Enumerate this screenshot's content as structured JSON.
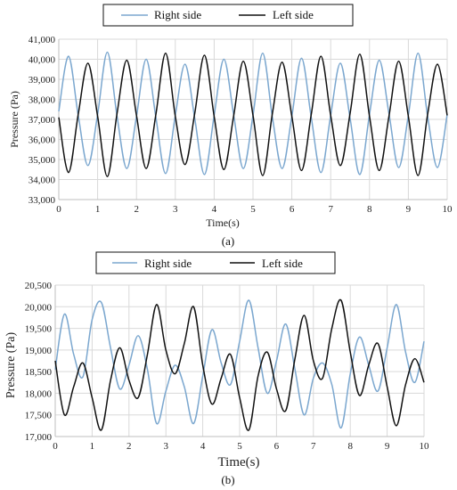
{
  "chart_data": [
    {
      "type": "line",
      "caption": "(a)",
      "xlabel": "Time(s)",
      "ylabel": "Pressure (Pa)",
      "xlim": [
        0,
        10
      ],
      "ylim": [
        33000,
        41000
      ],
      "xticks": [
        "0",
        "1",
        "2",
        "3",
        "4",
        "5",
        "6",
        "7",
        "8",
        "9",
        "10"
      ],
      "yticks": [
        "33,000",
        "34,000",
        "35,000",
        "36,000",
        "37,000",
        "38,000",
        "39,000",
        "40,000",
        "41,000"
      ],
      "grid": true,
      "legend_position": "top-center",
      "series": [
        {
          "name": "Right side",
          "color": "#7ba7cf",
          "x": [
            0,
            0.25,
            0.5,
            0.75,
            1.0,
            1.25,
            1.5,
            1.75,
            2.0,
            2.25,
            2.5,
            2.75,
            3.0,
            3.25,
            3.5,
            3.75,
            4.0,
            4.25,
            4.5,
            4.75,
            5.0,
            5.25,
            5.5,
            5.75,
            6.0,
            6.25,
            6.5,
            6.75,
            7.0,
            7.25,
            7.5,
            7.75,
            8.0,
            8.25,
            8.5,
            8.75,
            9.0,
            9.25,
            9.5,
            9.75,
            10.0
          ],
          "values": [
            37400,
            40150,
            37200,
            34700,
            37250,
            40350,
            37150,
            34550,
            37150,
            40000,
            37100,
            34300,
            37200,
            39750,
            37050,
            34250,
            37200,
            40000,
            37250,
            34550,
            37200,
            40300,
            37100,
            34550,
            37150,
            40050,
            37100,
            34350,
            37200,
            39800,
            37050,
            34250,
            37250,
            39950,
            37300,
            34600,
            37200,
            40300,
            37100,
            34600,
            37250
          ]
        },
        {
          "name": "Left side",
          "color": "#111111",
          "x": [
            0,
            0.25,
            0.5,
            0.75,
            1.0,
            1.25,
            1.5,
            1.75,
            2.0,
            2.25,
            2.5,
            2.75,
            3.0,
            3.25,
            3.5,
            3.75,
            4.0,
            4.25,
            4.5,
            4.75,
            5.0,
            5.25,
            5.5,
            5.75,
            6.0,
            6.25,
            6.5,
            6.75,
            7.0,
            7.25,
            7.5,
            7.75,
            8.0,
            8.25,
            8.5,
            8.75,
            9.0,
            9.25,
            9.5,
            9.75,
            10.0
          ],
          "values": [
            37100,
            34350,
            37250,
            39800,
            37150,
            34150,
            37300,
            39950,
            37200,
            34550,
            37250,
            40300,
            37150,
            34750,
            37300,
            40200,
            37150,
            34500,
            37150,
            39900,
            37200,
            34200,
            37300,
            39850,
            37150,
            34450,
            37250,
            40150,
            37200,
            34700,
            37300,
            40250,
            37150,
            34450,
            37150,
            39900,
            37150,
            34200,
            37300,
            39750,
            37200
          ]
        }
      ]
    },
    {
      "type": "line",
      "caption": "(b)",
      "xlabel": "Time(s)",
      "ylabel": "Pressure (Pa)",
      "xlim": [
        0,
        10
      ],
      "ylim": [
        17000,
        20500
      ],
      "xticks": [
        "0",
        "1",
        "2",
        "3",
        "4",
        "5",
        "6",
        "7",
        "8",
        "9",
        "10"
      ],
      "yticks": [
        "17,000",
        "17,500",
        "18,000",
        "18,500",
        "19,000",
        "19,500",
        "20,000",
        "20,500"
      ],
      "grid": true,
      "legend_position": "top-center",
      "series": [
        {
          "name": "Right side",
          "color": "#7ba7cf",
          "x": [
            0,
            0.25,
            0.5,
            0.75,
            1.0,
            1.25,
            1.5,
            1.75,
            2.0,
            2.25,
            2.5,
            2.75,
            3.0,
            3.25,
            3.5,
            3.75,
            4.0,
            4.25,
            4.5,
            4.75,
            5.0,
            5.25,
            5.5,
            5.75,
            6.0,
            6.25,
            6.5,
            6.75,
            7.0,
            7.25,
            7.5,
            7.75,
            8.0,
            8.25,
            8.5,
            8.75,
            9.0,
            9.25,
            9.5,
            9.75,
            10.0
          ],
          "values": [
            18550,
            19830,
            18900,
            18380,
            19700,
            20100,
            19050,
            18100,
            18650,
            19330,
            18550,
            17300,
            18050,
            18650,
            18150,
            17300,
            18400,
            19470,
            18700,
            18200,
            19200,
            20150,
            19050,
            18000,
            18750,
            19600,
            18550,
            17500,
            18350,
            18700,
            18200,
            17200,
            18450,
            19300,
            18650,
            18050,
            19050,
            20050,
            18950,
            18250,
            19200
          ]
        },
        {
          "name": "Left side",
          "color": "#111111",
          "x": [
            0,
            0.25,
            0.5,
            0.75,
            1.0,
            1.25,
            1.5,
            1.75,
            2.0,
            2.25,
            2.5,
            2.75,
            3.0,
            3.25,
            3.5,
            3.75,
            4.0,
            4.25,
            4.5,
            4.75,
            5.0,
            5.25,
            5.5,
            5.75,
            6.0,
            6.25,
            6.5,
            6.75,
            7.0,
            7.25,
            7.5,
            7.75,
            8.0,
            8.25,
            8.5,
            8.75,
            9.0,
            9.25,
            9.5,
            9.75,
            10.0
          ],
          "values": [
            18750,
            17500,
            18150,
            18700,
            17900,
            17150,
            18300,
            19050,
            18300,
            17900,
            18900,
            20050,
            19000,
            18450,
            19150,
            20000,
            18650,
            17750,
            18350,
            18900,
            17900,
            17150,
            18400,
            18950,
            18100,
            17600,
            18800,
            19800,
            18750,
            18350,
            19500,
            20150,
            18950,
            17950,
            18650,
            19150,
            18150,
            17250,
            18200,
            18800,
            18250
          ]
        }
      ]
    }
  ]
}
